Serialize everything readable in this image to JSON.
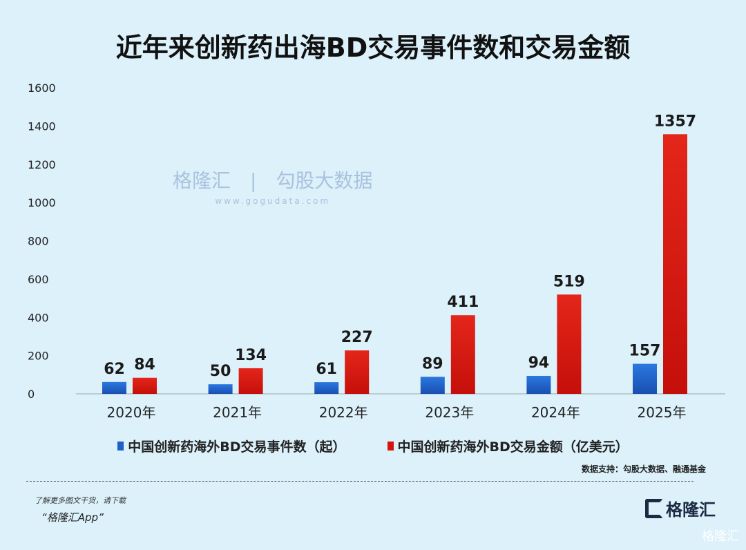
{
  "chart_data": {
    "type": "bar",
    "title": "近年来创新药出海BD交易事件数和交易金额",
    "categories": [
      "2020年",
      "2021年",
      "2022年",
      "2023年",
      "2024年",
      "2025年"
    ],
    "series": [
      {
        "name": "中国创新药海外BD交易事件数（起）",
        "color": "#1f5fc8",
        "values": [
          62,
          50,
          61,
          89,
          94,
          157
        ]
      },
      {
        "name": "中国创新药海外BD交易金额（亿美元）",
        "color": "#d7140c",
        "values": [
          84,
          134,
          227,
          411,
          519,
          1357
        ]
      }
    ],
    "ylim": [
      0,
      1600
    ],
    "yticks": [
      0,
      200,
      400,
      600,
      800,
      1000,
      1200,
      1400,
      1600
    ],
    "grid": false,
    "legend": "bottom"
  },
  "source": "数据支持：勾股大数据、融通基金",
  "footer": {
    "line1": "了解更多图文干货，请下载",
    "line2": "“格隆汇App”"
  },
  "logo": "格隆汇",
  "watermark": {
    "left": "格隆汇",
    "right": "勾股大数据",
    "url": "www.gogudata.com"
  }
}
